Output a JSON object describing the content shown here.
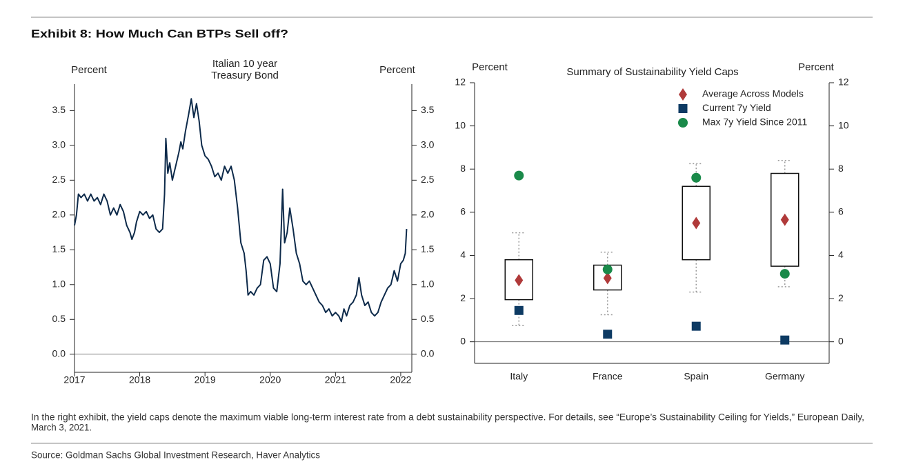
{
  "title": "Exhibit 8: How Much Can BTPs Sell off?",
  "chart_data": [
    {
      "type": "line",
      "title": [
        "Italian 10 year",
        "Treasury Bond"
      ],
      "ylabel": "Percent",
      "y2label": "Percent",
      "color": "#0d2a4a",
      "x": [
        2017.0,
        2017.03,
        2017.06,
        2017.1,
        2017.15,
        2017.2,
        2017.25,
        2017.3,
        2017.35,
        2017.4,
        2017.45,
        2017.5,
        2017.55,
        2017.6,
        2017.65,
        2017.7,
        2017.75,
        2017.8,
        2017.85,
        2017.88,
        2017.92,
        2017.95,
        2018.0,
        2018.05,
        2018.1,
        2018.15,
        2018.2,
        2018.25,
        2018.3,
        2018.35,
        2018.38,
        2018.4,
        2018.43,
        2018.46,
        2018.5,
        2018.55,
        2018.6,
        2018.63,
        2018.66,
        2018.7,
        2018.75,
        2018.79,
        2018.83,
        2018.87,
        2018.91,
        2018.95,
        2019.0,
        2019.05,
        2019.1,
        2019.15,
        2019.2,
        2019.25,
        2019.3,
        2019.35,
        2019.4,
        2019.45,
        2019.5,
        2019.55,
        2019.6,
        2019.63,
        2019.66,
        2019.7,
        2019.75,
        2019.8,
        2019.85,
        2019.9,
        2019.95,
        2020.0,
        2020.05,
        2020.1,
        2020.15,
        2020.19,
        2020.22,
        2020.26,
        2020.3,
        2020.35,
        2020.4,
        2020.45,
        2020.5,
        2020.55,
        2020.6,
        2020.65,
        2020.7,
        2020.75,
        2020.8,
        2020.85,
        2020.9,
        2020.95,
        2021.0,
        2021.05,
        2021.09,
        2021.13,
        2021.17,
        2021.22,
        2021.27,
        2021.32,
        2021.36,
        2021.4,
        2021.45,
        2021.5,
        2021.55,
        2021.6,
        2021.65,
        2021.7,
        2021.75,
        2021.8,
        2021.85,
        2021.9,
        2021.95,
        2022.0,
        2022.04,
        2022.07,
        2022.09
      ],
      "values": [
        1.85,
        2.0,
        2.3,
        2.25,
        2.3,
        2.2,
        2.3,
        2.2,
        2.25,
        2.15,
        2.3,
        2.2,
        2.0,
        2.1,
        2.0,
        2.15,
        2.05,
        1.85,
        1.75,
        1.65,
        1.75,
        1.9,
        2.05,
        2.0,
        2.05,
        1.95,
        2.0,
        1.8,
        1.75,
        1.8,
        2.3,
        3.1,
        2.6,
        2.75,
        2.5,
        2.7,
        2.9,
        3.05,
        2.95,
        3.2,
        3.45,
        3.67,
        3.4,
        3.6,
        3.35,
        3.0,
        2.85,
        2.8,
        2.7,
        2.55,
        2.6,
        2.5,
        2.7,
        2.6,
        2.7,
        2.5,
        2.1,
        1.6,
        1.45,
        1.2,
        0.85,
        0.9,
        0.85,
        0.95,
        1.0,
        1.35,
        1.4,
        1.3,
        0.95,
        0.9,
        1.3,
        2.37,
        1.6,
        1.75,
        2.1,
        1.8,
        1.45,
        1.3,
        1.05,
        1.0,
        1.05,
        0.95,
        0.85,
        0.75,
        0.7,
        0.6,
        0.65,
        0.55,
        0.6,
        0.55,
        0.47,
        0.65,
        0.55,
        0.7,
        0.75,
        0.85,
        1.1,
        0.85,
        0.7,
        0.75,
        0.6,
        0.55,
        0.6,
        0.75,
        0.85,
        0.95,
        1.0,
        1.2,
        1.05,
        1.3,
        1.35,
        1.45,
        1.8
      ],
      "xlim": [
        2017,
        2022.17
      ],
      "xticks": [
        2017,
        2018,
        2019,
        2020,
        2021,
        2022
      ],
      "ylim": [
        -0.26,
        3.88
      ],
      "yticks": [
        {
          "value": 0,
          "label": "0.0"
        },
        0.5,
        {
          "value": 1,
          "label": "1.0"
        },
        1.5,
        {
          "value": 2,
          "label": "2.0"
        },
        2.5,
        {
          "value": 3,
          "label": "3.0"
        },
        3.5
      ],
      "y2lim": [
        -0.26,
        3.88
      ],
      "y2ticks": [
        {
          "value": 0,
          "label": "0.0"
        },
        0.5,
        {
          "value": 1,
          "label": "1.0"
        },
        1.5,
        {
          "value": 2,
          "label": "2.0"
        },
        2.5,
        {
          "value": 3,
          "label": "3.0"
        },
        3.5
      ]
    },
    {
      "type": "box",
      "title": "Summary of Sustainability Yield Caps",
      "ylabel": "Percent",
      "y2label": "Percent",
      "categories": [
        "Italy",
        "France",
        "Spain",
        "Germany"
      ],
      "boxes": [
        {
          "whisker_low": 0.75,
          "q1": 1.95,
          "q3": 3.8,
          "whisker_high": 5.05
        },
        {
          "whisker_low": 1.25,
          "q1": 2.4,
          "q3": 3.55,
          "whisker_high": 4.15
        },
        {
          "whisker_low": 2.3,
          "q1": 3.8,
          "q3": 7.2,
          "whisker_high": 8.25
        },
        {
          "whisker_low": 2.55,
          "q1": 3.5,
          "q3": 7.8,
          "whisker_high": 8.4
        }
      ],
      "series": [
        {
          "name": "Average Across Models",
          "color": "#b03a3a",
          "marker": "diamond",
          "values": [
            2.85,
            2.95,
            5.5,
            5.65
          ]
        },
        {
          "name": "Current 7y Yield",
          "color": "#0d3a63",
          "marker": "square",
          "values": [
            1.45,
            0.35,
            0.72,
            0.08
          ]
        },
        {
          "name": "Max 7y Yield Since 2011",
          "color": "#1a8a4a",
          "marker": "circle",
          "values": [
            7.7,
            3.35,
            7.6,
            3.15
          ]
        }
      ],
      "legend": "upper right",
      "ylim": [
        -1,
        12
      ],
      "yticks": [
        0,
        2,
        4,
        6,
        8,
        10,
        12
      ],
      "y2lim": [
        -1,
        12
      ],
      "y2ticks": [
        0,
        2,
        4,
        6,
        8,
        10,
        12
      ]
    }
  ],
  "footnote": [
    "In the right exhibit, the yield caps denote the maximum viable long-term interest rate from a debt sustainability perspective. For details, see “Europe’s Sustainability Ceiling for Yields,” European Daily,",
    "March 3, 2021."
  ],
  "source": "Source: Goldman Sachs Global Investment Research, Haver Analytics"
}
